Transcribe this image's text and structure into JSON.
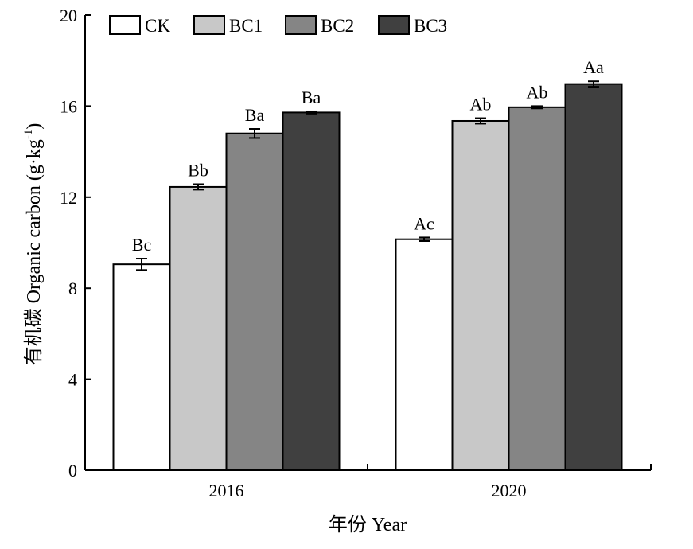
{
  "chart_data": {
    "type": "bar",
    "categories": [
      "2016",
      "2020"
    ],
    "series": [
      {
        "name": "CK",
        "color": "#ffffff",
        "values": [
          9.05,
          10.15
        ],
        "errors": [
          0.25,
          0.08
        ],
        "labels": [
          "Bc",
          "Ac"
        ]
      },
      {
        "name": "BC1",
        "color": "#c8c8c8",
        "values": [
          12.45,
          15.35
        ],
        "errors": [
          0.12,
          0.12
        ],
        "labels": [
          "Bb",
          "Ab"
        ]
      },
      {
        "name": "BC2",
        "color": "#858585",
        "values": [
          14.8,
          15.95
        ],
        "errors": [
          0.2,
          0.05
        ],
        "labels": [
          "Ba",
          "Ab"
        ]
      },
      {
        "name": "BC3",
        "color": "#404040",
        "values": [
          15.72,
          16.97
        ],
        "errors": [
          0.05,
          0.12
        ],
        "labels": [
          "Ba",
          "Aa"
        ]
      }
    ],
    "xlabel": "年份 Year",
    "ylabel": "有机碳 Organic carbon (g·kg⁻¹)",
    "ylabel_parts": {
      "main": "有机碳 Organic carbon (g·kg",
      "sup": "-1",
      "end": ")"
    },
    "ylim": [
      0,
      20
    ],
    "yticks": [
      0,
      4,
      8,
      12,
      16,
      20
    ],
    "grid": false,
    "legend_position": "top-left"
  }
}
